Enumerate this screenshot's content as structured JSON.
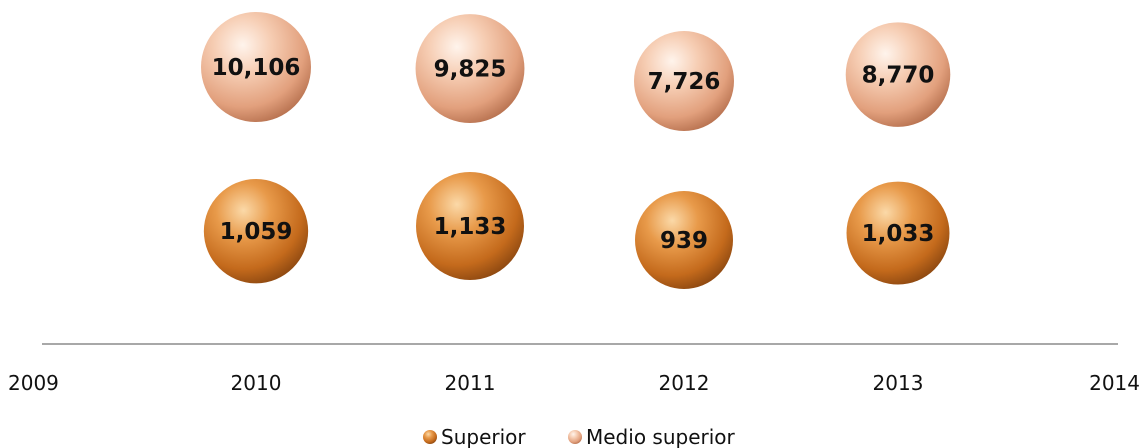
{
  "chart_data": {
    "type": "bubble",
    "x_axis": {
      "min": 2009,
      "max": 2014,
      "tick_labels": [
        "2009",
        "2010",
        "2011",
        "2012",
        "2013",
        "2014"
      ]
    },
    "series": [
      {
        "name": "Superior",
        "color": "#d9822b",
        "points": [
          {
            "x": 2010,
            "value": 1059,
            "label": "1,059"
          },
          {
            "x": 2011,
            "value": 1133,
            "label": "1,133"
          },
          {
            "x": 2012,
            "value": 939,
            "label": "939"
          },
          {
            "x": 2013,
            "value": 1033,
            "label": "1,033"
          }
        ]
      },
      {
        "name": "Medio superior",
        "color": "#f2b99a",
        "points": [
          {
            "x": 2010,
            "value": 10106,
            "label": "10,106"
          },
          {
            "x": 2011,
            "value": 9825,
            "label": "9,825"
          },
          {
            "x": 2012,
            "value": 7726,
            "label": "7,726"
          },
          {
            "x": 2013,
            "value": 8770,
            "label": "8,770"
          }
        ]
      }
    ],
    "grid": false,
    "legend": {
      "position": "bottom",
      "entries": [
        "Superior",
        "Medio superior"
      ]
    }
  }
}
